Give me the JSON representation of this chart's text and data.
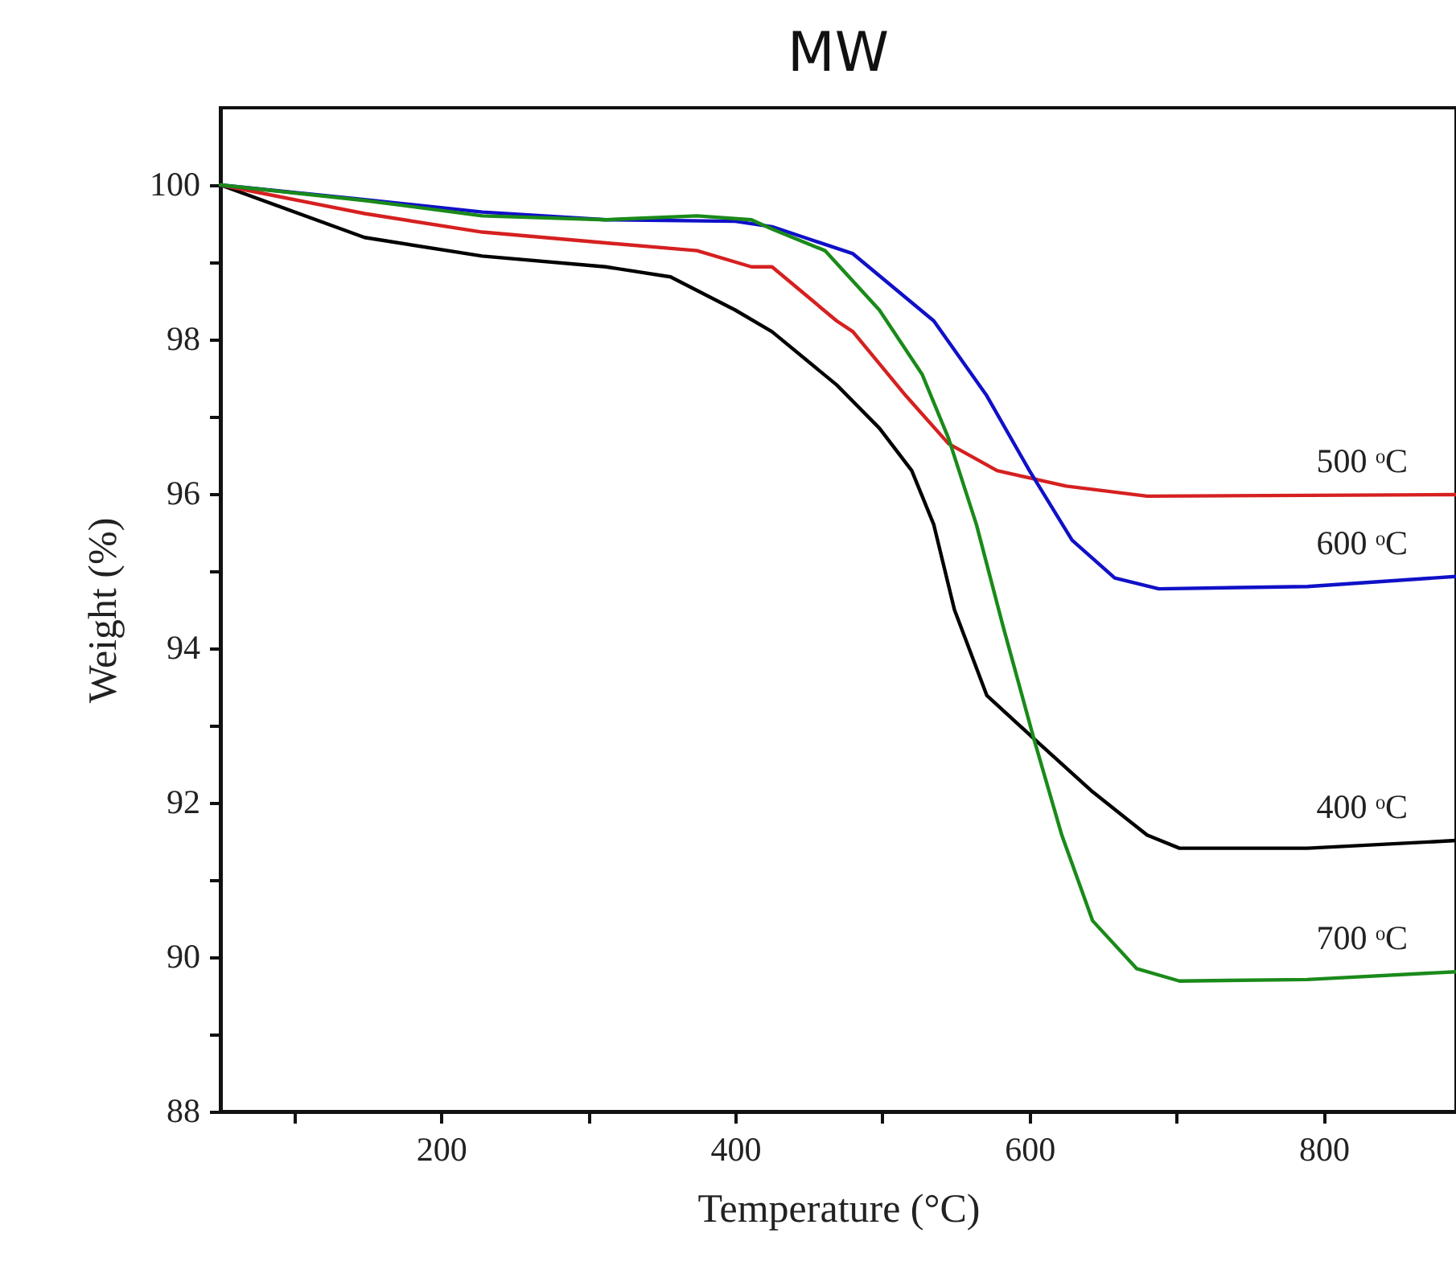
{
  "chart_data": {
    "type": "line",
    "title": "MW",
    "xlabel": "Temperature (°C)",
    "ylabel": "Weight (%)",
    "xlim": [
      50,
      890
    ],
    "xticks": [
      {
        "value": 100,
        "label": null
      },
      200,
      {
        "value": 300,
        "label": null
      },
      400,
      {
        "value": 500,
        "label": null
      },
      600,
      {
        "value": 700,
        "label": null
      },
      800
    ],
    "ylim": [
      88,
      101
    ],
    "yticks": [
      88,
      {
        "value": 89,
        "label": null
      },
      90,
      {
        "value": 91,
        "label": null
      },
      92,
      {
        "value": 93,
        "label": null
      },
      94,
      {
        "value": 95,
        "label": null
      },
      96,
      {
        "value": 97,
        "label": null
      },
      98,
      {
        "value": 99,
        "label": null
      },
      100
    ],
    "grid": false,
    "legend": false,
    "line_style": "solid",
    "series": [
      {
        "name": "400 ᵒC",
        "color": "#000000",
        "x": [
          50,
          148,
          228,
          312,
          356,
          400,
          425,
          469,
          498,
          520,
          535,
          549,
          571,
          603,
          643,
          680,
          702,
          789,
          890
        ],
        "values": [
          100,
          99.32,
          99.08,
          98.94,
          98.81,
          98.38,
          98.1,
          97.41,
          96.85,
          96.3,
          95.6,
          94.5,
          93.39,
          92.83,
          92.14,
          91.58,
          91.41,
          91.41,
          91.51
        ]
      },
      {
        "name": "500 ᵒC",
        "color": "#d62020",
        "x": [
          50,
          148,
          228,
          312,
          374,
          411,
          425,
          469,
          480,
          516,
          545,
          578,
          625,
          680,
          890
        ],
        "values": [
          100,
          99.63,
          99.39,
          99.25,
          99.15,
          98.94,
          98.94,
          98.24,
          98.1,
          97.27,
          96.65,
          96.3,
          96.1,
          95.97,
          95.99
        ]
      },
      {
        "name": "600 ᵒC",
        "color": "#1010c8",
        "x": [
          50,
          148,
          228,
          312,
          400,
          425,
          447,
          480,
          535,
          571,
          600,
          629,
          658,
          688,
          789,
          890
        ],
        "values": [
          100,
          99.81,
          99.65,
          99.55,
          99.53,
          99.46,
          99.32,
          99.11,
          98.24,
          97.27,
          96.3,
          95.4,
          94.91,
          94.77,
          94.8,
          94.93
        ]
      },
      {
        "name": "700 ᵒC",
        "color": "#1a8a1a",
        "x": [
          50,
          148,
          228,
          312,
          374,
          411,
          425,
          461,
          498,
          527,
          545,
          564,
          582,
          603,
          622,
          643,
          673,
          702,
          789,
          890
        ],
        "values": [
          100,
          99.8,
          99.6,
          99.55,
          99.6,
          99.55,
          99.43,
          99.15,
          98.38,
          97.55,
          96.72,
          95.6,
          94.29,
          92.83,
          91.58,
          90.47,
          89.85,
          89.69,
          89.71,
          89.81
        ]
      }
    ]
  }
}
